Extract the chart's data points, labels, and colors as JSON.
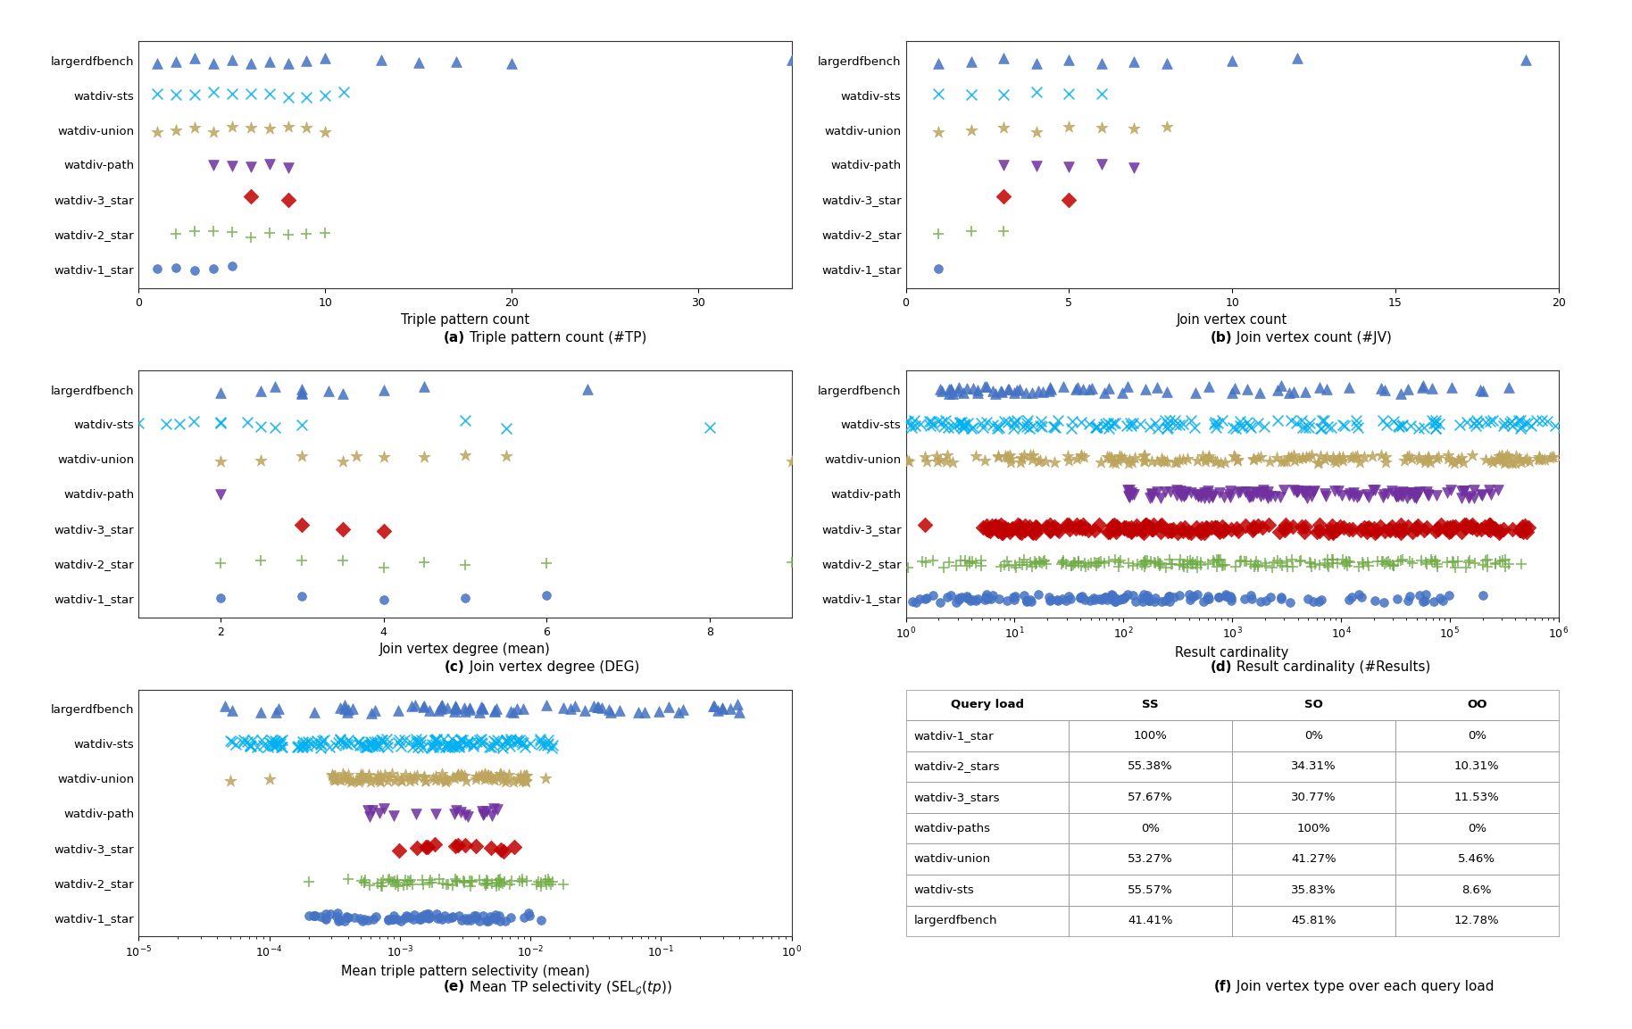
{
  "query_loads": [
    "watdiv-1_star",
    "watdiv-2_star",
    "watdiv-3_star",
    "watdiv-path",
    "watdiv-union",
    "watdiv-sts",
    "largerdfbench"
  ],
  "colors": [
    "#4472C4",
    "#70AD47",
    "#C00000",
    "#7030A0",
    "#BDA55E",
    "#00B0F0",
    "#4472C4"
  ],
  "markers": [
    "o",
    "+",
    "D",
    "v",
    "*",
    "x",
    "^"
  ],
  "tp_count": {
    "largerdfbench": [
      1,
      2,
      3,
      4,
      5,
      6,
      7,
      8,
      9,
      10,
      13,
      15,
      17,
      20,
      35
    ],
    "watdiv-sts": [
      1,
      2,
      3,
      4,
      5,
      6,
      7,
      8,
      9,
      10,
      11
    ],
    "watdiv-union": [
      1,
      2,
      3,
      4,
      5,
      6,
      7,
      8,
      9,
      10
    ],
    "watdiv-path": [
      4,
      5,
      6,
      7,
      8
    ],
    "watdiv-3_star": [
      6,
      8
    ],
    "watdiv-2_star": [
      2,
      3,
      4,
      5,
      6,
      7,
      8,
      9,
      10
    ],
    "watdiv-1_star": [
      1,
      2,
      3,
      4,
      5
    ]
  },
  "tp_xlim": [
    0,
    35
  ],
  "tp_xticks": [
    0,
    10,
    20,
    30
  ],
  "tp_xlabel": "Triple pattern count",
  "jv_count": {
    "largerdfbench": [
      1,
      2,
      3,
      4,
      5,
      6,
      7,
      8,
      10,
      12,
      19
    ],
    "watdiv-sts": [
      1,
      2,
      3,
      4,
      5,
      6
    ],
    "watdiv-union": [
      1,
      2,
      3,
      4,
      5,
      6,
      7,
      8
    ],
    "watdiv-path": [
      3,
      4,
      5,
      6,
      7
    ],
    "watdiv-3_star": [
      3,
      5
    ],
    "watdiv-2_star": [
      1,
      2,
      3
    ],
    "watdiv-1_star": [
      1
    ]
  },
  "jv_xlim": [
    0,
    20
  ],
  "jv_xticks": [
    0,
    5,
    10,
    15,
    20
  ],
  "jv_xlabel": "Join vertex count",
  "deg_count": {
    "largerdfbench": [
      2.0,
      2.5,
      2.67,
      3.0,
      3.0,
      3.0,
      3.33,
      3.5,
      4.0,
      4.5,
      6.5
    ],
    "watdiv-sts": [
      1.0,
      1.33,
      1.5,
      1.67,
      2.0,
      2.0,
      2.33,
      2.5,
      2.67,
      3.0,
      5.0,
      5.5,
      8.0
    ],
    "watdiv-union": [
      2.0,
      2.5,
      3.0,
      3.5,
      3.67,
      4.0,
      4.5,
      5.0,
      5.5,
      9.0
    ],
    "watdiv-path": [
      2.0
    ],
    "watdiv-3_star": [
      3.0,
      3.5,
      4.0
    ],
    "watdiv-2_star": [
      2.0,
      2.5,
      3.0,
      3.5,
      4.0,
      4.5,
      5.0,
      6.0,
      9.0
    ],
    "watdiv-1_star": [
      2.0,
      3.0,
      4.0,
      5.0,
      6.0
    ]
  },
  "deg_xlim": [
    1,
    9
  ],
  "deg_xlabel": "Join vertex degree (mean)",
  "card_xlim_log": [
    1,
    1000000
  ],
  "card_xlabel": "Result cardinality",
  "sel_xlim_log": [
    1e-05,
    1.0
  ],
  "sel_xlabel": "Mean triple pattern selectivity (mean)",
  "table_headers": [
    "Query load",
    "SS",
    "SO",
    "OO"
  ],
  "table_rows": [
    [
      "watdiv-1_star",
      "100%",
      "0%",
      "0%"
    ],
    [
      "watdiv-2_stars",
      "55.38%",
      "34.31%",
      "10.31%"
    ],
    [
      "watdiv-3_stars",
      "57.67%",
      "30.77%",
      "11.53%"
    ],
    [
      "watdiv-paths",
      "0%",
      "100%",
      "0%"
    ],
    [
      "watdiv-union",
      "53.27%",
      "41.27%",
      "5.46%"
    ],
    [
      "watdiv-sts",
      "55.57%",
      "35.83%",
      "8.6%"
    ],
    [
      "largerdfbench",
      "41.41%",
      "45.81%",
      "12.78%"
    ]
  ],
  "background_color": "#FFFFFF"
}
